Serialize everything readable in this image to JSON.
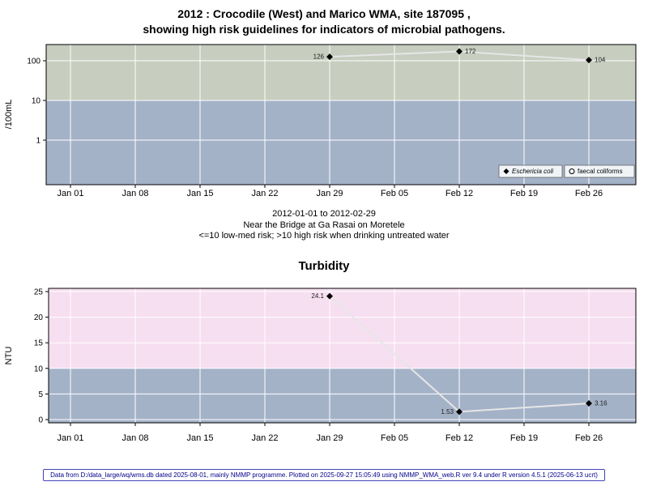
{
  "chart_data": [
    {
      "id": "microbial",
      "type": "line",
      "title_line1": "2012 : Crocodile (West) and Marico WMA, site 187095 ,",
      "title_line2": "showing high risk guidelines for indicators of microbial pathogens.",
      "ylabel": "/100mL",
      "yscale": "log",
      "ydomain": [
        0.0755,
        256
      ],
      "yticks": [
        1,
        10,
        100
      ],
      "ytick_labels": [
        "1",
        "10",
        "100"
      ],
      "xticks": [
        "Jan 01",
        "Jan 08",
        "Jan 15",
        "Jan 22",
        "Jan 29",
        "Feb 05",
        "Feb 12",
        "Feb 19",
        "Feb 26"
      ],
      "bands": [
        {
          "above": 10,
          "color": "#c7cdbf"
        },
        {
          "below": 10,
          "color": "#a4b2c8"
        }
      ],
      "series": [
        {
          "name": "Eschericia coli",
          "marker": "diamond",
          "points": [
            {
              "x": "Jan 29",
              "y": 126,
              "label": "126"
            },
            {
              "x": "Feb 12",
              "y": 172,
              "label": "172"
            },
            {
              "x": "Feb 26",
              "y": 104,
              "label": "104"
            }
          ]
        },
        {
          "name": "faecal coliforms",
          "marker": "circle",
          "points": []
        }
      ],
      "captions": [
        "2012-01-01 to 2012-02-29",
        "Near the Bridge at Ga Rasai on Moretele",
        "<=10 low-med risk; >10 high risk when drinking untreated water"
      ]
    },
    {
      "id": "turbidity",
      "type": "line",
      "title": "Turbidity",
      "ylabel": "NTU",
      "yscale": "linear",
      "ydomain": [
        -0.63,
        25.63
      ],
      "yticks": [
        0,
        5,
        10,
        15,
        20,
        25
      ],
      "ytick_labels": [
        "0",
        "5",
        "10",
        "15",
        "20",
        "25"
      ],
      "xticks": [
        "Jan 01",
        "Jan 08",
        "Jan 15",
        "Jan 22",
        "Jan 29",
        "Feb 05",
        "Feb 12",
        "Feb 19",
        "Feb 26"
      ],
      "bands": [
        {
          "above": 10,
          "color": "#f6dff0"
        },
        {
          "below": 10,
          "color": "#a4b2c8"
        }
      ],
      "series": [
        {
          "name": "Turbidity",
          "marker": "diamond",
          "points": [
            {
              "x": "Jan 29",
              "y": 24.1,
              "label": "24.1"
            },
            {
              "x": "Feb 12",
              "y": 1.53,
              "label": "1.53"
            },
            {
              "x": "Feb 26",
              "y": 3.16,
              "label": "3.16"
            }
          ]
        }
      ]
    }
  ],
  "colors": {
    "line": "#e6e6e6",
    "marker": "#000000",
    "grid": "#ffffff",
    "footer_text": "#00008b"
  },
  "footer": {
    "text": "Data from D:/data_large/wq/wms.db dated 2025-08-01, mainly NMMP programme. Plotted on 2025-09-27 15:05:49 using NMMP_WMA_web.R ver 9.4 under R version 4.5.1 (2025-06-13 ucrt)"
  }
}
